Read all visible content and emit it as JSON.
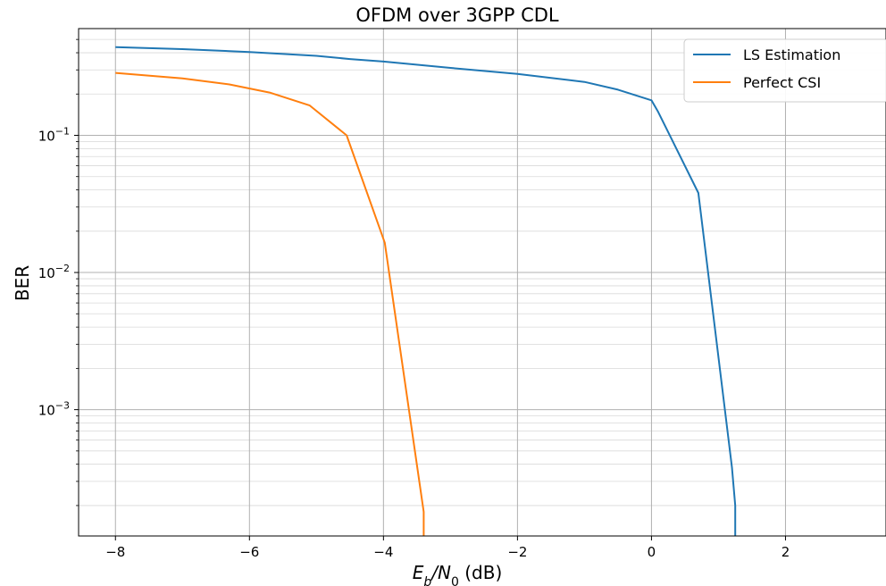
{
  "chart_data": {
    "type": "line",
    "title": "OFDM over 3GPP CDL",
    "xlabel": "E_b/N_0 (dB)",
    "ylabel": "BER",
    "xlim": [
      -8.55,
      3.5
    ],
    "ylim": [
      0.00012,
      0.6
    ],
    "yscale": "log",
    "grid": true,
    "legend_position": "top-right",
    "x_ticks": [
      {
        "value": -8,
        "label": "−8"
      },
      {
        "value": -6,
        "label": "−6"
      },
      {
        "value": -4,
        "label": "−4"
      },
      {
        "value": -2,
        "label": "−2"
      },
      {
        "value": 0,
        "label": "0"
      },
      {
        "value": 2,
        "label": "2"
      }
    ],
    "y_ticks": [
      {
        "value": 0.001,
        "base": "10",
        "exp": "−3"
      },
      {
        "value": 0.01,
        "base": "10",
        "exp": "−2"
      },
      {
        "value": 0.1,
        "base": "10",
        "exp": "−1"
      }
    ],
    "series": [
      {
        "name": "LS Estimation",
        "color": "#1f77b4",
        "x": [
          -8,
          -7,
          -6,
          -5,
          -4.5,
          -4,
          -3,
          -2,
          -1,
          -0.5,
          0,
          0.1,
          0.7,
          1.2,
          1.25,
          1.25
        ],
        "y": [
          0.44,
          0.425,
          0.405,
          0.38,
          0.36,
          0.345,
          0.31,
          0.28,
          0.245,
          0.215,
          0.18,
          0.148,
          0.038,
          0.00038,
          0.0002,
          0.00012
        ]
      },
      {
        "name": "Perfect CSI",
        "color": "#ff7f0e",
        "x": [
          -8,
          -7,
          -6.3,
          -5.7,
          -5.1,
          -4.55,
          -3.98,
          -3.4,
          -3.4
        ],
        "y": [
          0.285,
          0.26,
          0.235,
          0.205,
          0.165,
          0.1,
          0.0165,
          0.00018,
          0.00012
        ]
      }
    ]
  }
}
